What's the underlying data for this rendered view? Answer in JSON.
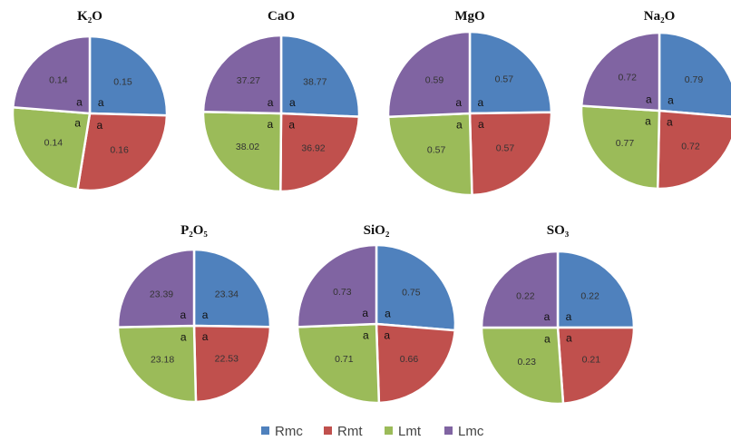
{
  "legend": [
    "Rmc",
    "Rmt",
    "Lmt",
    "Lmc"
  ],
  "colors": {
    "Rmc": "#4F81BD",
    "Rmt": "#C0504D",
    "Lmt": "#9BBB59",
    "Lmc": "#8064A2"
  },
  "chart_data": [
    {
      "type": "pie",
      "title": "K₂O",
      "categories": [
        "Rmc",
        "Rmt",
        "Lmt",
        "Lmc"
      ],
      "values": [
        0.15,
        0.16,
        0.14,
        0.14
      ],
      "labels": [
        "a",
        "a",
        "a",
        "a"
      ]
    },
    {
      "type": "pie",
      "title": "CaO",
      "categories": [
        "Rmc",
        "Rmt",
        "Lmt",
        "Lmc"
      ],
      "values": [
        38.77,
        36.92,
        38.02,
        37.27
      ],
      "labels": [
        "a",
        "a",
        "a",
        "a"
      ]
    },
    {
      "type": "pie",
      "title": "MgO",
      "categories": [
        "Rmc",
        "Rmt",
        "Lmt",
        "Lmc"
      ],
      "values": [
        0.57,
        0.57,
        0.57,
        0.59
      ],
      "labels": [
        "a",
        "a",
        "a",
        "a"
      ]
    },
    {
      "type": "pie",
      "title": "Na₂O",
      "categories": [
        "Rmc",
        "Rmt",
        "Lmt",
        "Lmc"
      ],
      "values": [
        0.79,
        0.72,
        0.77,
        0.72
      ],
      "labels": [
        "a",
        "a",
        "a",
        "a"
      ]
    },
    {
      "type": "pie",
      "title": "P₂O₅",
      "categories": [
        "Rmc",
        "Rmt",
        "Lmt",
        "Lmc"
      ],
      "values": [
        23.34,
        22.53,
        23.18,
        23.39
      ],
      "labels": [
        "a",
        "a",
        "a",
        "a"
      ]
    },
    {
      "type": "pie",
      "title": "SiO₂",
      "categories": [
        "Rmc",
        "Rmt",
        "Lmt",
        "Lmc"
      ],
      "values": [
        0.75,
        0.66,
        0.71,
        0.73
      ],
      "labels": [
        "a",
        "a",
        "a",
        "a"
      ]
    },
    {
      "type": "pie",
      "title": "SO₃",
      "categories": [
        "Rmc",
        "Rmt",
        "Lmt",
        "Lmc"
      ],
      "values": [
        0.22,
        0.21,
        0.23,
        0.22
      ],
      "labels": [
        "a",
        "a",
        "a",
        "a"
      ]
    }
  ]
}
